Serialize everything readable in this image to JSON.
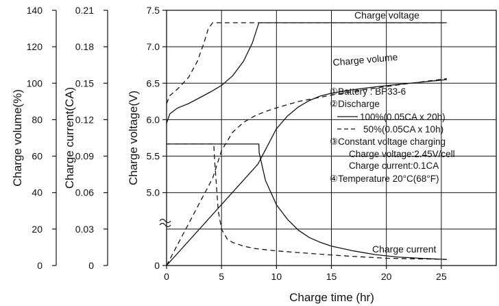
{
  "chart_data": {
    "type": "line",
    "x_axis": {
      "label": "Charge time  (hr)",
      "ticks": [
        0,
        5,
        10,
        15,
        20,
        25
      ],
      "range": [
        0,
        30
      ]
    },
    "y_axes": [
      {
        "key": "volume",
        "label": "Charge volume(%)",
        "ticks": [
          "0",
          "20",
          "40",
          "60",
          "80",
          "100",
          "120",
          "140"
        ],
        "range": [
          0,
          140
        ]
      },
      {
        "key": "current",
        "label": "Charge current(CA)",
        "ticks": [
          "0",
          "0.03",
          "0.06",
          "0.09",
          "0.12",
          "0.15",
          "0.18",
          "0.21"
        ],
        "range": [
          0,
          0.21
        ]
      },
      {
        "key": "voltage",
        "label": "Charge voltage(V)",
        "ticks": [
          "0",
          "5.0",
          "5.5",
          "6.0",
          "6.5",
          "7.0",
          "7.5"
        ],
        "tick_values": [
          4.0,
          5.0,
          5.5,
          6.0,
          6.5,
          7.0,
          7.5
        ],
        "range": [
          4.0,
          7.5
        ],
        "axis_break": true
      }
    ],
    "grid": true,
    "series": [
      {
        "name": "Charge voltage",
        "discharge": "100%",
        "axis": "voltage",
        "x": [
          0,
          0.3,
          1,
          2,
          3,
          4,
          5,
          6,
          7,
          7.8,
          8.4,
          25.5
        ],
        "y": [
          5.95,
          6.08,
          6.16,
          6.22,
          6.3,
          6.38,
          6.47,
          6.6,
          6.8,
          7.05,
          7.33,
          7.33
        ]
      },
      {
        "name": "Charge voltage",
        "discharge": "50%",
        "axis": "voltage",
        "x": [
          0,
          0.3,
          1,
          2,
          2.8,
          3.4,
          3.8,
          4.2,
          25.5
        ],
        "y": [
          6.22,
          6.33,
          6.42,
          6.58,
          6.8,
          7.05,
          7.25,
          7.33,
          7.33
        ]
      },
      {
        "name": "Charge volume",
        "discharge": "100%",
        "axis": "volume",
        "x": [
          0,
          8.3,
          10,
          11,
          12,
          13,
          14,
          15,
          17,
          19,
          21,
          23,
          25.5
        ],
        "y": [
          0,
          55.5,
          75,
          82,
          87,
          90.5,
          93,
          94.5,
          96.5,
          98,
          99.3,
          100.5,
          102
        ]
      },
      {
        "name": "Charge volume",
        "discharge": "50%",
        "axis": "volume",
        "x": [
          0,
          4.2,
          5,
          6,
          7,
          8,
          9,
          10,
          12,
          15,
          18,
          21,
          25.5
        ],
        "y": [
          0,
          48,
          63,
          73,
          78.5,
          82,
          84.5,
          86.5,
          90,
          93.5,
          96.5,
          99,
          102.5
        ]
      },
      {
        "name": "Charge current",
        "discharge": "100%",
        "axis": "current",
        "x": [
          0,
          8.4,
          8.42,
          9,
          10,
          11,
          12,
          13,
          14,
          15,
          17,
          19,
          21,
          23,
          25.5
        ],
        "y": [
          0.1,
          0.1,
          0.093,
          0.07,
          0.05,
          0.038,
          0.029,
          0.023,
          0.019,
          0.016,
          0.012,
          0.009,
          0.007,
          0.006,
          0.005
        ]
      },
      {
        "name": "Charge current",
        "discharge": "50%",
        "axis": "current",
        "x": [
          0,
          4.3,
          4.35,
          4.7,
          5,
          5.5,
          6,
          7,
          8,
          10,
          13,
          16,
          20,
          25.5
        ],
        "y": [
          0.1,
          0.1,
          0.09,
          0.045,
          0.03,
          0.022,
          0.019,
          0.016,
          0.014,
          0.012,
          0.01,
          0.008,
          0.006,
          0.005
        ]
      }
    ],
    "curve_labels": [
      "Charge voltage",
      "Charge volume",
      "Charge current"
    ],
    "legend": {
      "placement": "right",
      "lines": [
        {
          "text": "①Battery : BP33-6"
        },
        {
          "text": "②Discharge"
        },
        {
          "text": "100%(0.05CA x 20h)",
          "line": "solid"
        },
        {
          "text": "50%(0.05CA x 10h)",
          "line": "dashed"
        },
        {
          "text": "③Constant voltage charging"
        },
        {
          "text": "Charge voltage:2.45V/cell"
        },
        {
          "text": "Charge current:0.1CA"
        },
        {
          "text": "④Temperature 20°C(68°F)"
        }
      ]
    }
  }
}
